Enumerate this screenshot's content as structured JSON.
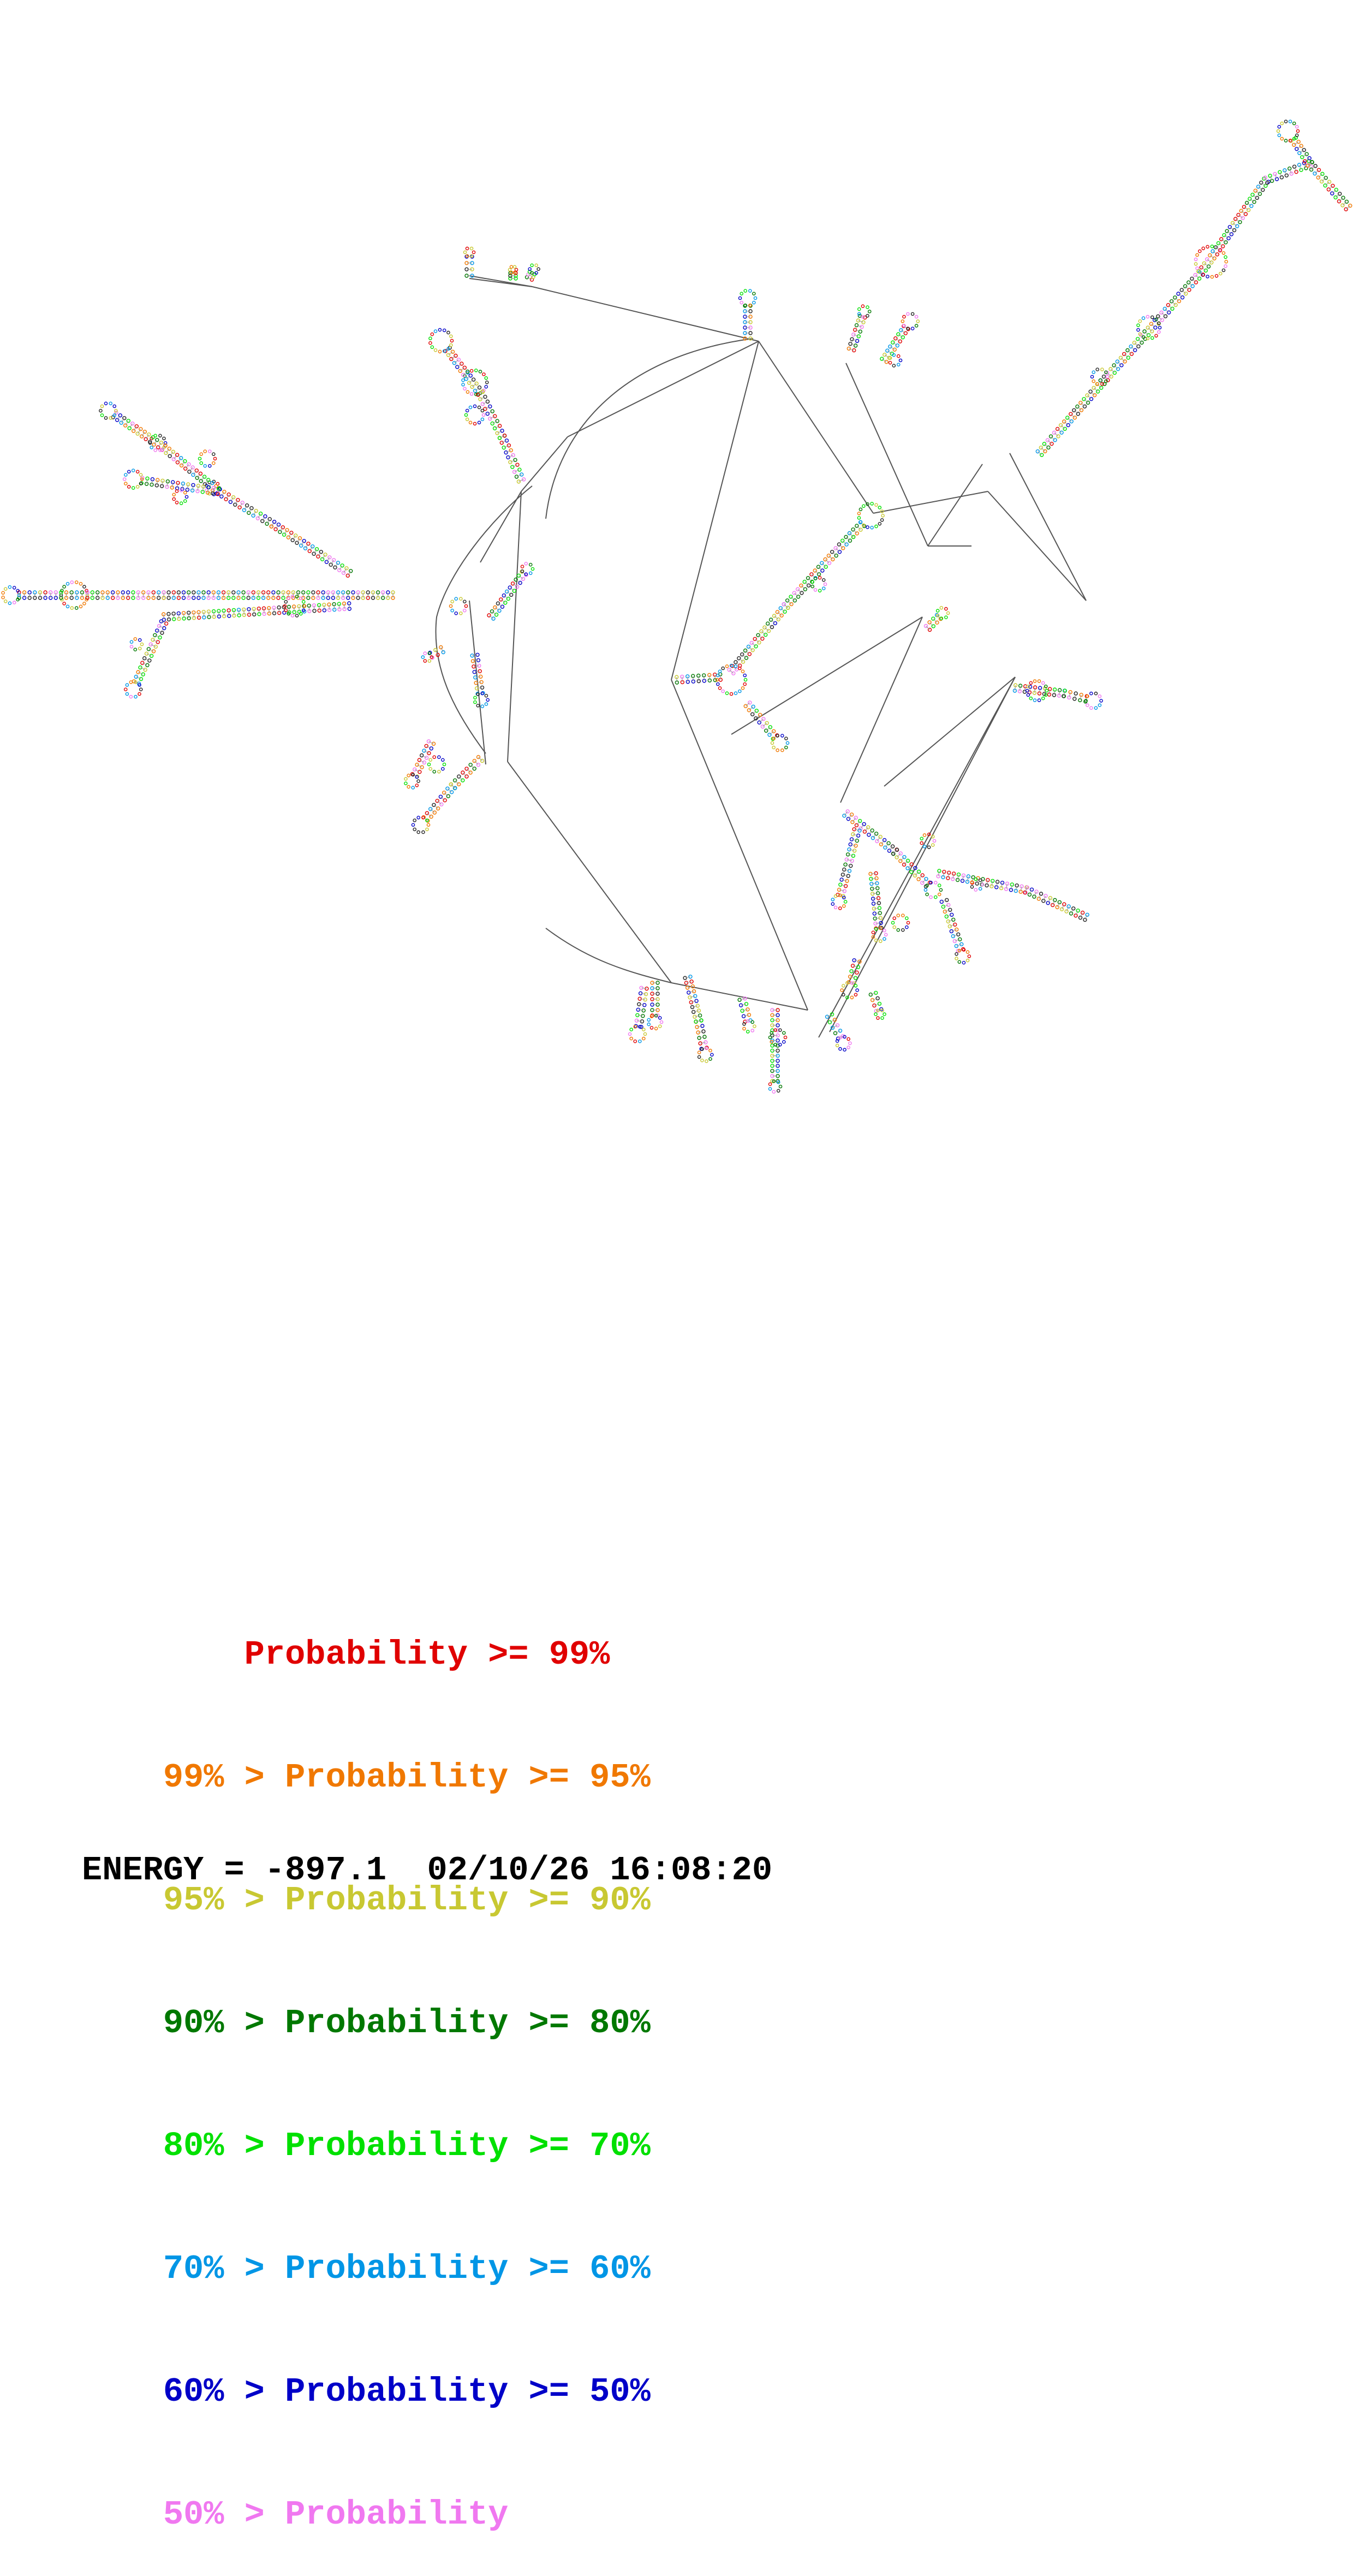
{
  "diagram": {
    "type": "rna-secondary-structure",
    "line_color": "#555555",
    "base_colors": [
      "#e00000",
      "#f07800",
      "#c8c832",
      "#007800",
      "#00e000",
      "#0096e6",
      "#0000c8",
      "#f078f0",
      "#222222"
    ]
  },
  "legend": {
    "rows": [
      {
        "prefix": "    ",
        "text": "Probability >= 99%",
        "color": "#e00000"
      },
      {
        "prefix": "99% > ",
        "text": "Probability >= 95%",
        "color": "#f07800"
      },
      {
        "prefix": "95% > ",
        "text": "Probability >= 90%",
        "color": "#c8c832"
      },
      {
        "prefix": "90% > ",
        "text": "Probability >= 80%",
        "color": "#007800"
      },
      {
        "prefix": "80% > ",
        "text": "Probability >= 70%",
        "color": "#00e000"
      },
      {
        "prefix": "70% > ",
        "text": "Probability >= 60%",
        "color": "#0096e6"
      },
      {
        "prefix": "60% > ",
        "text": "Probability >= 50%",
        "color": "#0000c8"
      },
      {
        "prefix": "50% > ",
        "text": "Probability",
        "color": "#f078f0"
      }
    ]
  },
  "footer": {
    "energy_label": "ENERGY =",
    "energy_value": "-897.1",
    "timestamp": "02/10/26 16:08:20"
  }
}
